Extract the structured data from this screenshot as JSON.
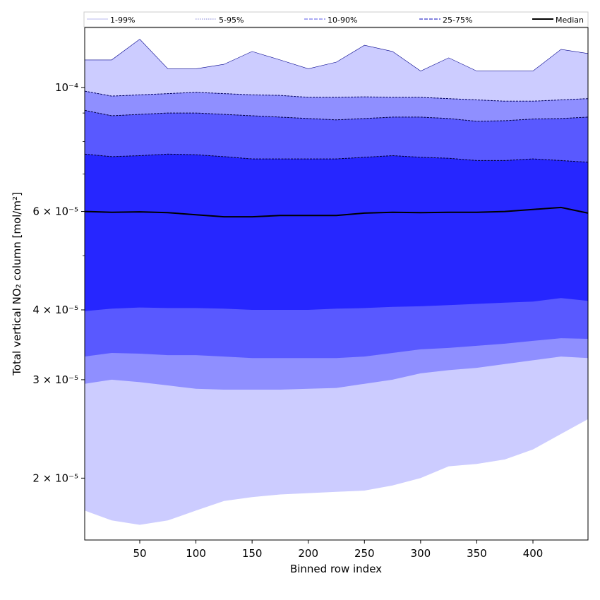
{
  "chart_data": {
    "type": "area",
    "xlabel": "Binned row index",
    "ylabel": "Total vertical NO₂ column [mol/m²]",
    "xlim": [
      1,
      449
    ],
    "ylim": [
      1.55e-05,
      0.000128
    ],
    "yscale": "log",
    "xticks": [
      50,
      100,
      150,
      200,
      250,
      300,
      350,
      400
    ],
    "yticks": [
      {
        "value": 2e-05,
        "label": "2 × 10⁻⁵"
      },
      {
        "value": 3e-05,
        "label": "3 × 10⁻⁵"
      },
      {
        "value": 4e-05,
        "label": "4 × 10⁻⁵"
      },
      {
        "value": 6e-05,
        "label": "6 × 10⁻⁵"
      },
      {
        "value": 0.0001,
        "label": "10⁻⁴"
      }
    ],
    "legend_position": "top (horizontal strip above plot)",
    "x": [
      1,
      25,
      50,
      75,
      100,
      125,
      150,
      175,
      200,
      225,
      250,
      275,
      300,
      325,
      350,
      375,
      400,
      425,
      449
    ],
    "bands": [
      {
        "name": "1-99%",
        "color": "#ccccff",
        "edge_color": "#00008b",
        "lower": [
          1.75e-05,
          1.68e-05,
          1.65e-05,
          1.68e-05,
          1.75e-05,
          1.82e-05,
          1.85e-05,
          1.87e-05,
          1.88e-05,
          1.89e-05,
          1.9e-05,
          1.94e-05,
          2e-05,
          2.1e-05,
          2.12e-05,
          2.16e-05,
          2.25e-05,
          2.4e-05,
          2.55e-05
        ],
        "upper": [
          0.000112,
          0.000112,
          0.000122,
          0.000108,
          0.000108,
          0.00011,
          0.000116,
          0.000112,
          0.000108,
          0.000111,
          0.000119,
          0.000116,
          0.000107,
          0.000113,
          0.000107,
          0.000107,
          0.000107,
          0.000117,
          0.000115
        ]
      },
      {
        "name": "5-95%",
        "color": "#8f8fff",
        "edge_color": "#000060",
        "lower": [
          2.95e-05,
          3e-05,
          2.97e-05,
          2.93e-05,
          2.89e-05,
          2.88e-05,
          2.88e-05,
          2.88e-05,
          2.89e-05,
          2.9e-05,
          2.95e-05,
          3e-05,
          3.08e-05,
          3.12e-05,
          3.15e-05,
          3.2e-05,
          3.25e-05,
          3.3e-05,
          3.28e-05
        ],
        "upper": [
          9.85e-05,
          9.65e-05,
          9.7e-05,
          9.75e-05,
          9.8e-05,
          9.75e-05,
          9.7e-05,
          9.68e-05,
          9.6e-05,
          9.6e-05,
          9.62e-05,
          9.6e-05,
          9.6e-05,
          9.55e-05,
          9.5e-05,
          9.45e-05,
          9.45e-05,
          9.5e-05,
          9.55e-05
        ]
      },
      {
        "name": "10-90%",
        "color": "#5959ff",
        "edge_color": "#000040",
        "lower": [
          3.3e-05,
          3.35e-05,
          3.34e-05,
          3.32e-05,
          3.32e-05,
          3.3e-05,
          3.28e-05,
          3.28e-05,
          3.28e-05,
          3.28e-05,
          3.3e-05,
          3.35e-05,
          3.4e-05,
          3.42e-05,
          3.45e-05,
          3.48e-05,
          3.52e-05,
          3.56e-05,
          3.55e-05
        ],
        "upper": [
          9.1e-05,
          8.9e-05,
          8.95e-05,
          9e-05,
          9e-05,
          8.95e-05,
          8.9e-05,
          8.85e-05,
          8.8e-05,
          8.75e-05,
          8.8e-05,
          8.85e-05,
          8.85e-05,
          8.8e-05,
          8.7e-05,
          8.72e-05,
          8.78e-05,
          8.8e-05,
          8.85e-05
        ]
      },
      {
        "name": "25-75%",
        "color": "#2626ff",
        "edge_color": "#000030",
        "lower": [
          3.98e-05,
          4.02e-05,
          4.04e-05,
          4.03e-05,
          4.03e-05,
          4.02e-05,
          4e-05,
          4e-05,
          4e-05,
          4.02e-05,
          4.03e-05,
          4.05e-05,
          4.06e-05,
          4.08e-05,
          4.1e-05,
          4.12e-05,
          4.14e-05,
          4.2e-05,
          4.15e-05
        ],
        "upper": [
          7.6e-05,
          7.52e-05,
          7.55e-05,
          7.6e-05,
          7.58e-05,
          7.52e-05,
          7.45e-05,
          7.45e-05,
          7.45e-05,
          7.45e-05,
          7.5e-05,
          7.55e-05,
          7.5e-05,
          7.47e-05,
          7.4e-05,
          7.4e-05,
          7.45e-05,
          7.4e-05,
          7.35e-05
        ]
      }
    ],
    "median": {
      "name": "Median",
      "color": "#000000",
      "values": [
        6e-05,
        5.98e-05,
        5.99e-05,
        5.97e-05,
        5.92e-05,
        5.87e-05,
        5.87e-05,
        5.9e-05,
        5.9e-05,
        5.9e-05,
        5.96e-05,
        5.98e-05,
        5.97e-05,
        5.98e-05,
        5.98e-05,
        6e-05,
        6.05e-05,
        6.1e-05,
        5.96e-05
      ]
    },
    "legend": [
      {
        "label": "1-99%",
        "color": "#c8c8f0",
        "style": "solid"
      },
      {
        "label": "5-95%",
        "color": "#9999dd",
        "style": "dotted"
      },
      {
        "label": "10-90%",
        "color": "#7777ee",
        "style": "dashed"
      },
      {
        "label": "25-75%",
        "color": "#3a3acc",
        "style": "dashed"
      },
      {
        "label": "Median",
        "color": "#000000",
        "style": "solid"
      }
    ]
  }
}
